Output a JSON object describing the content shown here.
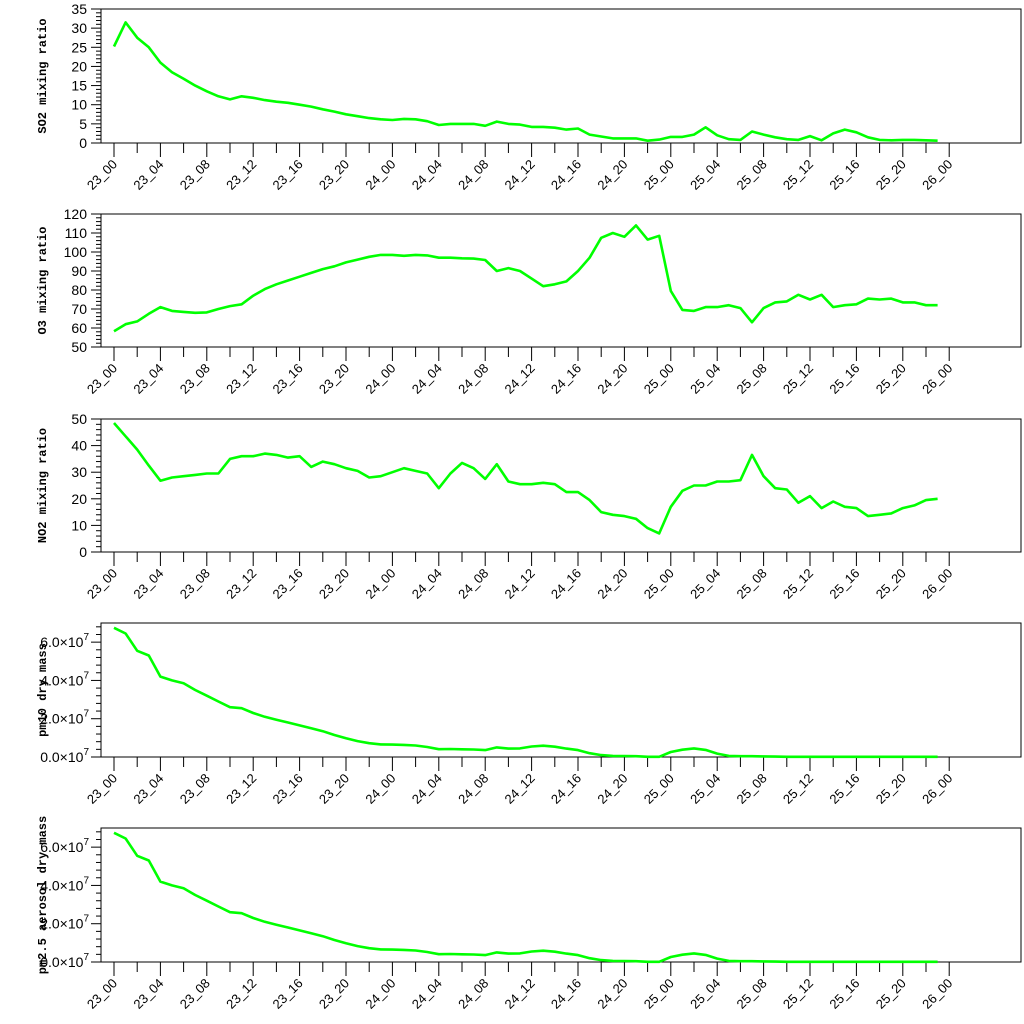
{
  "chart_data": [
    {
      "type": "line",
      "title": "",
      "xlabel": "",
      "ylabel": "SO2 mixing ratio",
      "ylim": [
        0,
        35
      ],
      "yticks": [
        0,
        5,
        10,
        15,
        20,
        25,
        30,
        35
      ],
      "ytick_labels": [
        "0",
        "5",
        "10",
        "15",
        "20",
        "25",
        "30",
        "35"
      ],
      "grid": false,
      "line_color": "#00ff00",
      "xtick_labels": [
        "23_00",
        "23_04",
        "23_08",
        "23_12",
        "23_16",
        "23_20",
        "24_00",
        "24_04",
        "24_08",
        "24_12",
        "24_16",
        "24_20",
        "25_00",
        "25_04",
        "25_08",
        "25_12",
        "25_16",
        "25_20",
        "26_00"
      ],
      "series": [
        {
          "values": [
            25.2,
            31.5,
            27.5,
            25.0,
            21.0,
            18.5,
            16.8,
            15.0,
            13.5,
            12.2,
            11.4,
            12.2,
            11.8,
            11.2,
            10.8,
            10.5,
            10.0,
            9.5,
            8.8,
            8.2,
            7.5,
            7.0,
            6.5,
            6.2,
            6.0,
            6.3,
            6.2,
            5.7,
            4.7,
            5.0,
            5.0,
            5.0,
            4.5,
            5.6,
            5.0,
            4.8,
            4.2,
            4.2,
            4.0,
            3.5,
            3.8,
            2.2,
            1.7,
            1.2,
            1.2,
            1.2,
            0.6,
            0.9,
            1.6,
            1.6,
            2.2,
            4.1,
            2.0,
            1.0,
            0.8,
            3.0,
            2.2,
            1.5,
            1.0,
            0.8,
            1.8,
            0.7,
            2.5,
            3.5,
            2.8,
            1.5,
            0.8,
            0.7,
            0.8,
            0.8,
            0.7,
            0.6
          ]
        }
      ]
    },
    {
      "type": "line",
      "title": "",
      "xlabel": "",
      "ylabel": "O3 mixing ratio",
      "ylim": [
        50,
        120
      ],
      "yticks": [
        50,
        60,
        70,
        80,
        90,
        100,
        110,
        120
      ],
      "ytick_labels": [
        "50",
        "60",
        "70",
        "80",
        "90",
        "100",
        "110",
        "120"
      ],
      "grid": false,
      "line_color": "#00ff00",
      "xtick_labels": [
        "23_00",
        "23_04",
        "23_08",
        "23_12",
        "23_16",
        "23_20",
        "24_00",
        "24_04",
        "24_08",
        "24_12",
        "24_16",
        "24_20",
        "25_00",
        "25_04",
        "25_08",
        "25_12",
        "25_16",
        "25_20",
        "26_00"
      ],
      "series": [
        {
          "values": [
            58.3,
            62.0,
            63.5,
            67.5,
            71.0,
            69.0,
            68.5,
            68.0,
            68.2,
            70.0,
            71.5,
            72.5,
            77.0,
            80.5,
            83.0,
            85.0,
            87.0,
            89.0,
            91.0,
            92.5,
            94.5,
            96.0,
            97.5,
            98.5,
            98.5,
            98.0,
            98.5,
            98.2,
            97.0,
            97.0,
            96.7,
            96.5,
            95.8,
            90.0,
            91.5,
            90.0,
            86.0,
            82.0,
            83.0,
            84.5,
            90.0,
            97.0,
            107.5,
            110.0,
            108.0,
            114.0,
            106.5,
            108.5,
            79.5,
            69.5,
            69.0,
            71.0,
            71.0,
            72.0,
            70.5,
            63.0,
            70.5,
            73.5,
            74.0,
            77.5,
            75.0,
            77.5,
            71.0,
            72.0,
            72.5,
            75.5,
            75.0,
            75.5,
            73.5,
            73.5,
            72.0,
            72.0
          ]
        }
      ]
    },
    {
      "type": "line",
      "title": "",
      "xlabel": "",
      "ylabel": "NO2 mixing ratio",
      "ylim": [
        0,
        50
      ],
      "yticks": [
        0,
        10,
        20,
        30,
        40,
        50
      ],
      "ytick_labels": [
        "0",
        "10",
        "20",
        "30",
        "40",
        "50"
      ],
      "grid": false,
      "line_color": "#00ff00",
      "xtick_labels": [
        "23_00",
        "23_04",
        "23_08",
        "23_12",
        "23_16",
        "23_20",
        "24_00",
        "24_04",
        "24_08",
        "24_12",
        "24_16",
        "24_20",
        "25_00",
        "25_04",
        "25_08",
        "25_12",
        "25_16",
        "25_20",
        "26_00"
      ],
      "series": [
        {
          "values": [
            48.5,
            43.5,
            38.5,
            32.5,
            26.8,
            28.0,
            28.5,
            29.0,
            29.5,
            29.5,
            35.0,
            36.0,
            36.0,
            37.0,
            36.5,
            35.5,
            36.0,
            32.0,
            34.0,
            33.0,
            31.5,
            30.5,
            28.0,
            28.5,
            30.0,
            31.5,
            30.5,
            29.5,
            24.0,
            29.5,
            33.5,
            31.5,
            27.5,
            33.0,
            26.5,
            25.5,
            25.5,
            26.0,
            25.5,
            22.5,
            22.5,
            19.5,
            15.0,
            14.0,
            13.5,
            12.5,
            9.0,
            7.0,
            17.0,
            23.0,
            25.0,
            25.0,
            26.5,
            26.5,
            27.0,
            36.5,
            28.5,
            24.0,
            23.5,
            18.5,
            21.0,
            16.5,
            19.0,
            17.0,
            16.5,
            13.5,
            14.0,
            14.5,
            16.5,
            17.5,
            19.5,
            20.0
          ]
        }
      ]
    },
    {
      "type": "line",
      "title": "",
      "xlabel": "",
      "ylabel": "pm10 dry mass",
      "ylim": [
        0,
        70000000
      ],
      "yticks": [
        0,
        20000000,
        40000000,
        60000000
      ],
      "ytick_labels": [
        "0.0×10",
        "2.0×10",
        "4.0×10",
        "6.0×10"
      ],
      "ytick_exponent": "7",
      "grid": false,
      "line_color": "#00ff00",
      "xtick_labels": [
        "23_00",
        "23_04",
        "23_08",
        "23_12",
        "23_16",
        "23_20",
        "24_00",
        "24_04",
        "24_08",
        "24_12",
        "24_16",
        "24_20",
        "25_00",
        "25_04",
        "25_08",
        "25_12",
        "25_16",
        "25_20",
        "26_00"
      ],
      "series": [
        {
          "values": [
            67500000,
            64500000,
            55500000,
            53000000,
            42000000,
            40000000,
            38500000,
            35000000,
            32000000,
            29000000,
            26000000,
            25500000,
            23000000,
            21000000,
            19500000,
            18000000,
            16500000,
            15000000,
            13500000,
            11500000,
            9800000,
            8300000,
            7200000,
            6600000,
            6500000,
            6300000,
            6000000,
            5200000,
            4100000,
            4200000,
            4000000,
            3900000,
            3600000,
            5000000,
            4400000,
            4500000,
            5500000,
            5900000,
            5400000,
            4400000,
            3600000,
            2000000,
            1000000,
            600000,
            500000,
            400000,
            100000,
            100000,
            2600000,
            3800000,
            4500000,
            3700000,
            1800000,
            600000,
            400000,
            400000,
            300000,
            200000,
            100000,
            100000,
            100000,
            100000,
            100000,
            100000,
            100000,
            100000,
            100000,
            100000,
            100000,
            100000,
            100000,
            100000
          ]
        }
      ]
    },
    {
      "type": "line",
      "title": "",
      "xlabel": "",
      "ylabel": "pm2.5 aerosol dry mass",
      "ylim": [
        0,
        70000000
      ],
      "yticks": [
        0,
        20000000,
        40000000,
        60000000
      ],
      "ytick_labels": [
        "0.0×10",
        "2.0×10",
        "4.0×10",
        "6.0×10"
      ],
      "ytick_exponent": "7",
      "grid": false,
      "line_color": "#00ff00",
      "xtick_labels": [
        "23_00",
        "23_04",
        "23_08",
        "23_12",
        "23_16",
        "23_20",
        "24_00",
        "24_04",
        "24_08",
        "24_12",
        "24_16",
        "24_20",
        "25_00",
        "25_04",
        "25_08",
        "25_12",
        "25_16",
        "25_20",
        "26_00"
      ],
      "series": [
        {
          "values": [
            67500000,
            64500000,
            55500000,
            53000000,
            42000000,
            40000000,
            38500000,
            35000000,
            32000000,
            29000000,
            26000000,
            25500000,
            23000000,
            21000000,
            19500000,
            18000000,
            16500000,
            15000000,
            13500000,
            11500000,
            9800000,
            8300000,
            7200000,
            6600000,
            6500000,
            6300000,
            6000000,
            5200000,
            4100000,
            4200000,
            4000000,
            3900000,
            3600000,
            5000000,
            4400000,
            4500000,
            5500000,
            5900000,
            5400000,
            4400000,
            3600000,
            2000000,
            1000000,
            600000,
            500000,
            400000,
            100000,
            100000,
            2600000,
            3800000,
            4500000,
            3700000,
            1800000,
            600000,
            400000,
            400000,
            300000,
            200000,
            100000,
            100000,
            100000,
            100000,
            100000,
            100000,
            100000,
            100000,
            100000,
            100000,
            100000,
            100000,
            100000,
            100000
          ]
        }
      ]
    }
  ]
}
